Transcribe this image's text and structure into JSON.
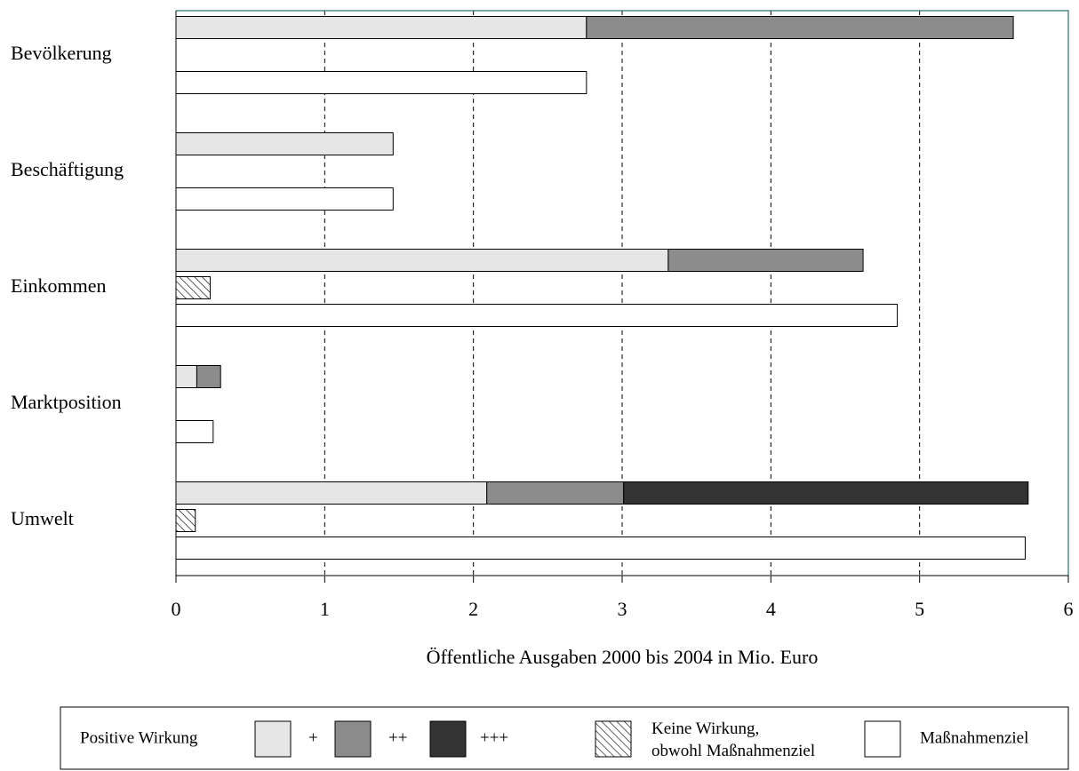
{
  "chart_data": {
    "type": "bar",
    "orientation": "horizontal",
    "categories": [
      "Bevölkerung",
      "Beschäftigung",
      "Einkommen",
      "Marktposition",
      "Umwelt"
    ],
    "series": [
      {
        "name": "+",
        "color": "#e6e6e6",
        "values": [
          2.76,
          1.46,
          3.31,
          0.14,
          2.09
        ]
      },
      {
        "name": "++",
        "color": "#8c8c8c",
        "values": [
          2.87,
          null,
          1.31,
          0.16,
          0.92
        ]
      },
      {
        "name": "+++",
        "color": "#333333",
        "values": [
          null,
          null,
          null,
          null,
          2.72
        ]
      },
      {
        "name": "Keine Wirkung,\nobwohl Maßnahmenziel",
        "color": "#ffffff",
        "hatch": true,
        "values": [
          null,
          null,
          0.23,
          null,
          0.13
        ]
      },
      {
        "name": "Maßnahmenziel",
        "color": "#ffffff",
        "values": [
          2.76,
          1.46,
          4.85,
          0.25,
          5.71
        ]
      }
    ],
    "legend_title": "Positive Wirkung",
    "xlabel": "Öffentliche Ausgaben 2000 bis 2004 in Mio. Euro",
    "xlim": [
      0,
      6
    ],
    "xticks": [
      0,
      1,
      2,
      3,
      4,
      5,
      6
    ],
    "grid": true,
    "legend": "bottom"
  }
}
